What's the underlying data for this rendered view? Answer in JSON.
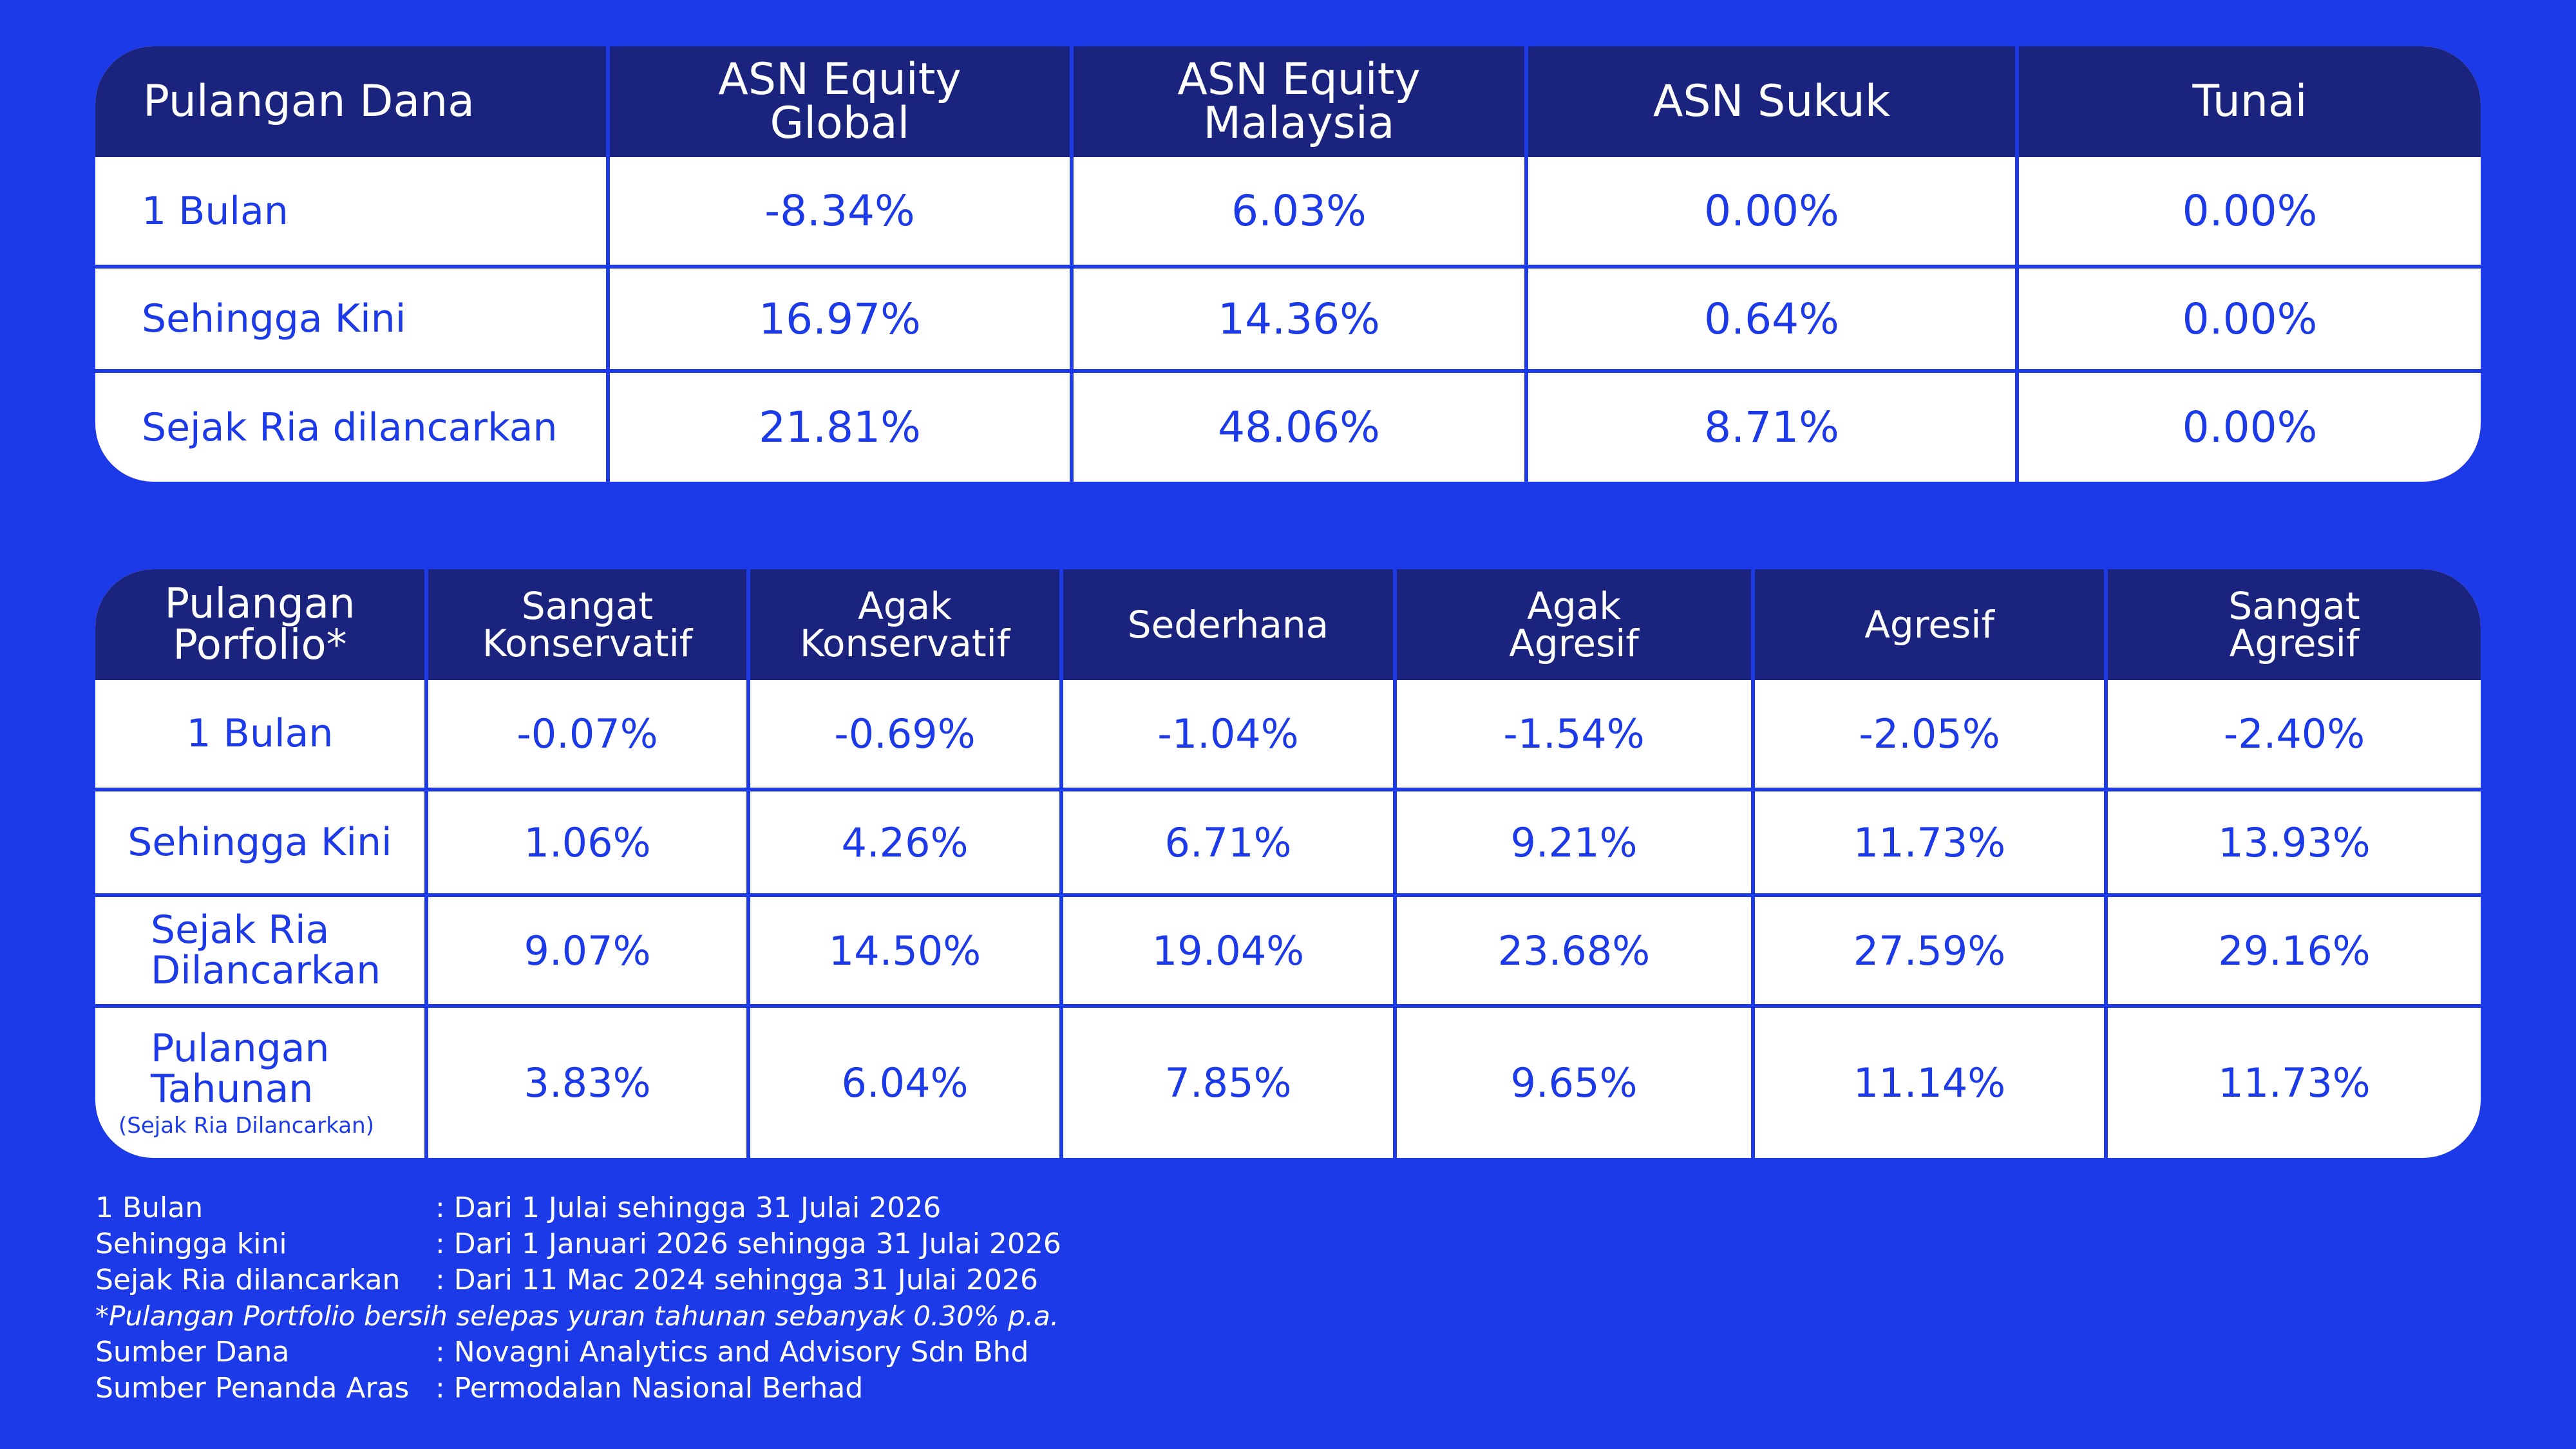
{
  "fund_returns": {
    "headers": [
      "Pulangan Dana",
      "ASN Equity\nGlobal",
      "ASN Equity\nMalaysia",
      "ASN Sukuk",
      "Tunai"
    ],
    "rows": [
      {
        "label": "1 Bulan",
        "values": [
          "-8.34%",
          "6.03%",
          "0.00%",
          "0.00%"
        ]
      },
      {
        "label": "Sehingga Kini",
        "values": [
          "16.97%",
          "14.36%",
          "0.64%",
          "0.00%"
        ]
      },
      {
        "label": "Sejak Ria dilancarkan",
        "values": [
          "21.81%",
          "48.06%",
          "8.71%",
          "0.00%"
        ]
      }
    ]
  },
  "portfolio_returns": {
    "headers": [
      "Pulangan\nPorfolio*",
      "Sangat\nKonservatif",
      "Agak\nKonservatif",
      "Sederhana",
      "Agak\nAgresif",
      "Agresif",
      "Sangat\nAgresif"
    ],
    "rows": [
      {
        "label": "1 Bulan",
        "values": [
          "-0.07%",
          "-0.69%",
          "-1.04%",
          "-1.54%",
          "-2.05%",
          "-2.40%"
        ]
      },
      {
        "label": "Sehingga Kini",
        "values": [
          "1.06%",
          "4.26%",
          "6.71%",
          "9.21%",
          "11.73%",
          "13.93%"
        ]
      },
      {
        "label": "Sejak Ria\nDilancarkan",
        "values": [
          "9.07%",
          "14.50%",
          "19.04%",
          "23.68%",
          "27.59%",
          "29.16%"
        ]
      },
      {
        "label": "Pulangan\nTahunan",
        "sublabel": "(Sejak Ria Dilancarkan)",
        "values": [
          "3.83%",
          "6.04%",
          "7.85%",
          "9.65%",
          "11.14%",
          "11.73%"
        ]
      }
    ]
  },
  "notes": {
    "one_month": {
      "key": "1 Bulan",
      "value": ": Dari 1 Julai sehingga 31 Julai 2026"
    },
    "ytd": {
      "key": "Sehingga kini",
      "value": ": Dari 1 Januari 2026 sehingga 31 Julai 2026"
    },
    "since_launch": {
      "key": "Sejak Ria dilancarkan",
      "value": ": Dari 11 Mac 2024 sehingga 31 Julai 2026"
    },
    "disclaimer": "*Pulangan Portfolio bersih selepas yuran tahunan sebanyak 0.30% p.a.",
    "fund_source": {
      "key": "Sumber Dana",
      "value": ": Novagni Analytics and Advisory Sdn Bhd"
    },
    "benchmark_source": {
      "key": "Sumber Penanda Aras",
      "value": ": Permodalan Nasional Berhad"
    }
  }
}
